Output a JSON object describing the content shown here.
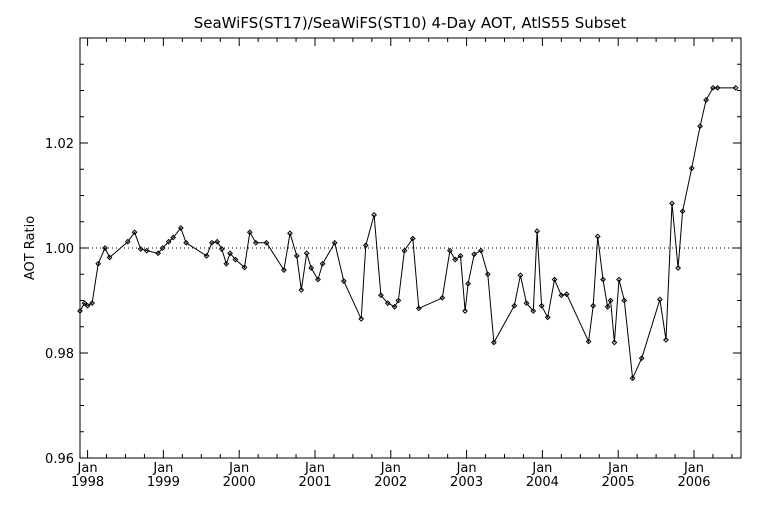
{
  "chart_data": {
    "type": "line",
    "title": "SeaWiFS(ST17)/SeaWiFS(ST10) 4-Day AOT, AtlS55 Subset",
    "xlabel": "",
    "ylabel": "AOT Ratio",
    "ylim": [
      0.96,
      1.04
    ],
    "y_ticks": [
      "0.96",
      "0.98",
      "1.00",
      "1.02"
    ],
    "x_tick_labels": [
      {
        "month": "Jan",
        "year": "1998"
      },
      {
        "month": "Jan",
        "year": "1999"
      },
      {
        "month": "Jan",
        "year": "2000"
      },
      {
        "month": "Jan",
        "year": "2001"
      },
      {
        "month": "Jan",
        "year": "2002"
      },
      {
        "month": "Jan",
        "year": "2003"
      },
      {
        "month": "Jan",
        "year": "2004"
      },
      {
        "month": "Jan",
        "year": "2005"
      },
      {
        "month": "Jan",
        "year": "2006"
      }
    ],
    "x_range_years": [
      1997.9,
      2006.62
    ],
    "reference_line": 1.0,
    "grid": false,
    "series": [
      {
        "markers": "diamond",
        "x": [
          1997.9,
          1997.96,
          1998.0,
          1998.06,
          1998.14,
          1998.23,
          1998.29,
          1998.53,
          1998.62,
          1998.7,
          1998.78,
          1998.93,
          1998.99,
          1999.07,
          1999.13,
          1999.23,
          1999.3,
          1999.57,
          1999.64,
          1999.71,
          1999.77,
          1999.83,
          1999.88,
          1999.95,
          2000.07,
          2000.14,
          2000.22,
          2000.36,
          2000.59,
          2000.67,
          2000.76,
          2000.82,
          2000.89,
          2000.95,
          2001.04,
          2001.1,
          2001.26,
          2001.38,
          2001.61,
          2001.67,
          2001.78,
          2001.87,
          2001.96,
          2002.05,
          2002.1,
          2002.18,
          2002.29,
          2002.37,
          2002.68,
          2002.78,
          2002.85,
          2002.92,
          2002.98,
          2003.02,
          2003.1,
          2003.19,
          2003.28,
          2003.36,
          2003.63,
          2003.71,
          2003.79,
          2003.88,
          2003.93,
          2003.99,
          2004.07,
          2004.16,
          2004.25,
          2004.32,
          2004.61,
          2004.67,
          2004.73,
          2004.8,
          2004.86,
          2004.9,
          2004.95,
          2005.01,
          2005.08,
          2005.19,
          2005.31,
          2005.55,
          2005.63,
          2005.71,
          2005.79,
          2005.85,
          2005.97,
          2006.08,
          2006.16,
          2006.25,
          2006.31,
          2006.55
        ],
        "y": [
          0.988,
          0.9895,
          0.989,
          0.9895,
          0.997,
          1.0,
          0.9982,
          1.0012,
          1.003,
          0.9998,
          0.9995,
          0.999,
          1.0,
          1.0012,
          1.002,
          1.0038,
          1.001,
          0.9985,
          1.001,
          1.0012,
          0.9998,
          0.997,
          0.999,
          0.9978,
          0.9963,
          1.003,
          1.001,
          1.001,
          0.9958,
          1.0028,
          0.9985,
          0.992,
          0.999,
          0.9962,
          0.994,
          0.997,
          1.001,
          0.9937,
          0.9865,
          1.0005,
          1.0063,
          0.991,
          0.9895,
          0.9888,
          0.99,
          0.9995,
          1.0018,
          0.9885,
          0.9905,
          0.9995,
          0.9978,
          0.9985,
          0.988,
          0.9932,
          0.9988,
          0.9995,
          0.995,
          0.982,
          0.989,
          0.9948,
          0.9895,
          0.988,
          1.0032,
          0.989,
          0.9868,
          0.994,
          0.991,
          0.9912,
          0.9822,
          0.989,
          1.0022,
          0.994,
          0.9888,
          0.99,
          0.982,
          0.994,
          0.99,
          0.9752,
          0.979,
          0.9902,
          0.9825,
          1.0085,
          0.9962,
          1.007,
          1.0152,
          1.0232,
          1.0282,
          1.0305,
          1.0305,
          1.0305
        ]
      }
    ]
  }
}
